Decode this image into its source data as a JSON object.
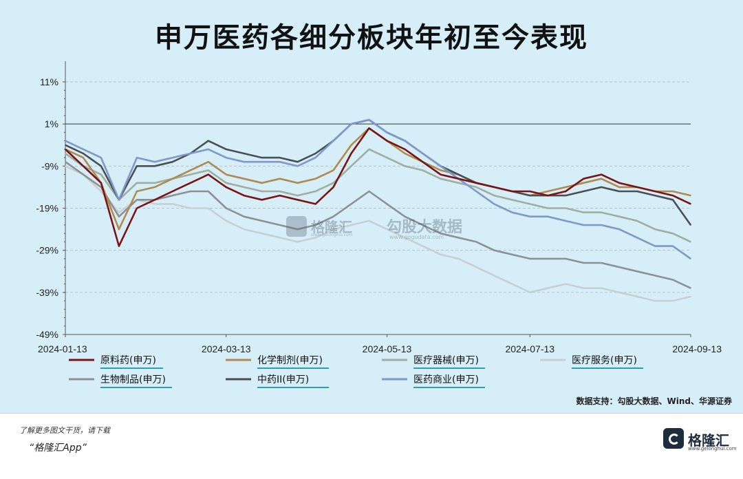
{
  "title": "申万医药各细分板块年初至今表现",
  "source": "数据支持：勾股大数据、Wind、华源证券",
  "footer": {
    "note": "了解更多图文干货，请下载",
    "app": "“格隆汇App”",
    "logo_name": "格隆汇",
    "logo_url": "www.gelonghui.com"
  },
  "watermark": {
    "name": "格隆汇",
    "sub": "www.gelonghui.com",
    "name2": "勾股大数据",
    "sub2": "www.gogudata.com"
  },
  "colors": {
    "background": "#d5eef7",
    "原料药": "#7a1414",
    "化学制剂": "#b08a4e",
    "医疗器械": "#9fae9e",
    "医疗服务": "#c8cfd3",
    "生物制品": "#8d9196",
    "中药II": "#4a4e55",
    "医药商业": "#7e98cc"
  },
  "chart_data": {
    "type": "line",
    "x_tick_labels": [
      "2024-01-13",
      "2024-03-13",
      "2024-05-13",
      "2024-07-13",
      "2024-09-13"
    ],
    "x": [
      "2024-01-13",
      "2024-01-20",
      "2024-01-27",
      "2024-02-03",
      "2024-02-10",
      "2024-02-17",
      "2024-02-24",
      "2024-03-02",
      "2024-03-09",
      "2024-03-16",
      "2024-03-23",
      "2024-03-30",
      "2024-04-06",
      "2024-04-13",
      "2024-04-20",
      "2024-04-27",
      "2024-05-04",
      "2024-05-11",
      "2024-05-18",
      "2024-05-25",
      "2024-06-01",
      "2024-06-08",
      "2024-06-15",
      "2024-06-22",
      "2024-06-29",
      "2024-07-06",
      "2024-07-13",
      "2024-07-20",
      "2024-07-27",
      "2024-08-03",
      "2024-08-10",
      "2024-08-17",
      "2024-08-24",
      "2024-08-31",
      "2024-09-07",
      "2024-09-13"
    ],
    "y_tick_labels": [
      "11%",
      "1%",
      "-9%",
      "-19%",
      "-29%",
      "-39%",
      "-49%"
    ],
    "ylim": [
      -49,
      11
    ],
    "series": [
      {
        "name": "原料药",
        "values": [
          -5,
          -9,
          -13,
          -28,
          -19,
          -17,
          -15,
          -13,
          -11,
          -14,
          -16,
          -17,
          -16,
          -17,
          -18,
          -14,
          -6,
          0,
          -3,
          -5,
          -8,
          -11,
          -12,
          -13,
          -14,
          -15,
          -15,
          -16,
          -15,
          -12,
          -11,
          -13,
          -14,
          -15,
          -16,
          -18
        ]
      },
      {
        "name": "化学制剂",
        "values": [
          -5,
          -7,
          -13,
          -24,
          -15,
          -14,
          -12,
          -10,
          -8,
          -11,
          -12,
          -13,
          -12,
          -13,
          -12,
          -10,
          -4,
          0,
          -3,
          -6,
          -8,
          -10,
          -11,
          -13,
          -14,
          -15,
          -16,
          -15,
          -14,
          -13,
          -12,
          -14,
          -14,
          -15,
          -15,
          -16
        ]
      },
      {
        "name": "医疗器械",
        "values": [
          -6,
          -9,
          -11,
          -17,
          -13,
          -13,
          -12,
          -11,
          -10,
          -13,
          -14,
          -15,
          -15,
          -16,
          -15,
          -13,
          -9,
          -5,
          -7,
          -9,
          -10,
          -12,
          -13,
          -14,
          -16,
          -17,
          -18,
          -19,
          -19,
          -20,
          -20,
          -21,
          -22,
          -24,
          -25,
          -27
        ]
      },
      {
        "name": "医疗服务",
        "values": [
          -9,
          -11,
          -15,
          -20,
          -17,
          -18,
          -18,
          -19,
          -19,
          -22,
          -24,
          -25,
          -26,
          -27,
          -26,
          -24,
          -23,
          -22,
          -24,
          -26,
          -28,
          -30,
          -31,
          -33,
          -35,
          -37,
          -39,
          -38,
          -37,
          -38,
          -38,
          -39,
          -40,
          -41,
          -41,
          -40
        ]
      },
      {
        "name": "生物制品",
        "values": [
          -8,
          -11,
          -14,
          -21,
          -17,
          -17,
          -16,
          -15,
          -15,
          -19,
          -21,
          -22,
          -23,
          -24,
          -23,
          -21,
          -18,
          -15,
          -18,
          -21,
          -23,
          -25,
          -26,
          -27,
          -29,
          -30,
          -31,
          -31,
          -31,
          -32,
          -32,
          -33,
          -34,
          -35,
          -36,
          -38
        ]
      },
      {
        "name": "中药II",
        "values": [
          -4,
          -6,
          -9,
          -17,
          -9,
          -9,
          -8,
          -6,
          -3,
          -5,
          -6,
          -7,
          -7,
          -8,
          -6,
          -3,
          1,
          2,
          -1,
          -3,
          -6,
          -9,
          -11,
          -13,
          -14,
          -15,
          -16,
          -16,
          -16,
          -15,
          -14,
          -15,
          -15,
          -16,
          -17,
          -23
        ]
      },
      {
        "name": "医药商业",
        "values": [
          -3,
          -5,
          -7,
          -17,
          -7,
          -8,
          -7,
          -6,
          -5,
          -7,
          -8,
          -8,
          -8,
          -9,
          -7,
          -3,
          1,
          2,
          -1,
          -3,
          -6,
          -9,
          -12,
          -15,
          -18,
          -20,
          -21,
          -21,
          -22,
          -23,
          -23,
          -24,
          -26,
          -28,
          -28,
          -31
        ]
      }
    ],
    "legend_position": "bottom",
    "grid": "horizontal dashed",
    "baseline_value": 1
  }
}
